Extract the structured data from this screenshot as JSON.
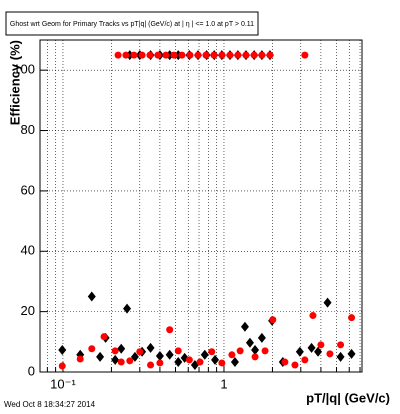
{
  "chart_data": {
    "type": "scatter",
    "title": "Ghost wrt Geom for Primary Tracks vs pT|q| (GeV/c) at | η | <= 1.0 at pT > 0.11",
    "x_label": "pT/|q| (GeV/c)",
    "y_label": "Efficiency (%)",
    "timestamp": "Wed Oct  8 18:34:27 2014",
    "xscale": "log",
    "grid": true,
    "xlim": [
      0.072,
      7.2
    ],
    "ylim": [
      0,
      110
    ],
    "xticks": [
      {
        "value": 0.1,
        "label": "10⁻¹"
      },
      1
    ],
    "xminorticks": [
      0.08,
      0.09,
      0.2,
      0.3,
      0.4,
      0.5,
      0.6,
      0.7,
      0.8,
      0.9,
      2,
      3,
      4,
      5,
      6,
      7
    ],
    "yticks": [
      0,
      20,
      40,
      60,
      80,
      100
    ],
    "series": [
      {
        "name": "black",
        "color": "#000000",
        "marker": "diamond",
        "x": [
          0.099,
          0.128,
          0.151,
          0.17,
          0.184,
          0.211,
          0.23,
          0.25,
          0.28,
          0.31,
          0.35,
          0.4,
          0.46,
          0.52,
          0.57,
          0.66,
          0.76,
          0.88,
          1.17,
          1.35,
          1.45,
          1.56,
          1.72,
          1.99,
          2.32,
          2.96,
          3.5,
          3.84,
          4.4,
          5.3,
          6.2,
          0.26,
          0.3,
          0.35,
          0.4,
          0.46,
          0.52,
          0.61,
          0.69,
          0.78,
          0.87,
          0.97,
          1.09,
          1.22,
          1.37,
          1.54,
          1.72,
          1.93
        ],
        "y": [
          7.3,
          5.7,
          25,
          5,
          11.3,
          4,
          7.7,
          21,
          5,
          6.7,
          8,
          5.3,
          5.7,
          3.3,
          4.7,
          2.3,
          5.7,
          4,
          3.3,
          15,
          9.7,
          7.3,
          11.3,
          17,
          3.3,
          6.7,
          8,
          6.7,
          23,
          5,
          6,
          105,
          105,
          105,
          105,
          105,
          105,
          105,
          105,
          105,
          105,
          105,
          105,
          105,
          105,
          105,
          105,
          105
        ]
      },
      {
        "name": "red",
        "color": "#ff0000",
        "marker": "circle",
        "x": [
          0.099,
          0.128,
          0.151,
          0.18,
          0.211,
          0.23,
          0.26,
          0.3,
          0.35,
          0.4,
          0.46,
          0.52,
          0.61,
          0.71,
          0.84,
          0.97,
          1.12,
          1.26,
          1.56,
          1.8,
          2.01,
          2.39,
          2.76,
          3.18,
          3.57,
          4.0,
          4.55,
          5.3,
          6.2,
          0.22,
          0.246,
          0.276,
          0.31,
          0.347,
          0.389,
          0.436,
          0.489,
          0.548,
          0.615,
          0.69,
          0.773,
          0.867,
          0.972,
          1.09,
          1.22,
          1.37,
          1.54,
          1.72,
          1.93,
          3.18
        ],
        "y": [
          2,
          4.3,
          7.7,
          11.7,
          7,
          3.3,
          3.7,
          6.7,
          2.3,
          3,
          14,
          7,
          4,
          3.3,
          6.7,
          3,
          5.7,
          7,
          5,
          7,
          17.3,
          3.3,
          2.3,
          4,
          18.7,
          9,
          6,
          9,
          18,
          105,
          105,
          105,
          105,
          105,
          105,
          105,
          105,
          105,
          105,
          105,
          105,
          105,
          105,
          105,
          105,
          105,
          105,
          105,
          105,
          105
        ]
      }
    ]
  }
}
